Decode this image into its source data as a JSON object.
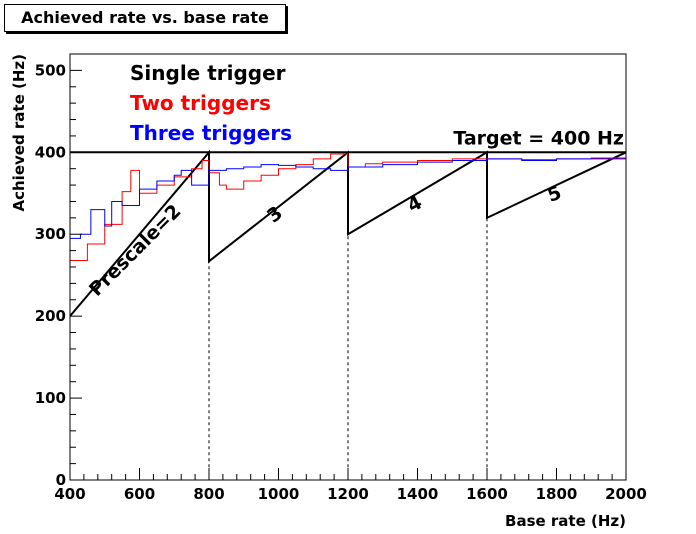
{
  "title": "Achieved rate vs. base rate",
  "chart_data": {
    "type": "line",
    "xlabel": "Base rate (Hz)",
    "ylabel": "Achieved rate (Hz)",
    "xlim": [
      400,
      2000
    ],
    "ylim": [
      0,
      520
    ],
    "xticks": [
      "400",
      "600",
      "800",
      "1000",
      "1200",
      "1400",
      "1600",
      "1800",
      "2000"
    ],
    "yticks": [
      "0",
      "100",
      "200",
      "300",
      "400",
      "500"
    ],
    "target": {
      "value": 400,
      "label": "Target = 400 Hz"
    },
    "legend": [
      "Single trigger",
      "Two triggers",
      "Three triggers"
    ],
    "series": [
      {
        "name": "Single trigger",
        "color": "#000000",
        "x": [
          400,
          800,
          800,
          1200,
          1200,
          1600,
          1600,
          2000
        ],
        "y": [
          200,
          400,
          267,
          400,
          300,
          400,
          320,
          400
        ]
      },
      {
        "name": "Two triggers",
        "color": "#ff0000",
        "x": [
          400,
          450,
          500,
          550,
          575,
          600,
          650,
          700,
          750,
          780,
          800,
          830,
          850,
          900,
          950,
          1000,
          1050,
          1100,
          1150,
          1200,
          1250,
          1300,
          1400,
          1500,
          1600,
          1700,
          1800,
          1900,
          2000
        ],
        "y": [
          268,
          288,
          312,
          352,
          378,
          350,
          360,
          370,
          380,
          390,
          375,
          360,
          355,
          365,
          372,
          380,
          385,
          392,
          398,
          382,
          386,
          388,
          390,
          392,
          392,
          391,
          392,
          393,
          391
        ]
      },
      {
        "name": "Three triggers",
        "color": "#0000ff",
        "x": [
          400,
          430,
          460,
          500,
          520,
          550,
          600,
          650,
          700,
          720,
          750,
          800,
          850,
          900,
          950,
          1000,
          1050,
          1100,
          1150,
          1200,
          1300,
          1400,
          1500,
          1600,
          1700,
          1800,
          1900,
          2000
        ],
        "y": [
          295,
          300,
          330,
          310,
          340,
          335,
          355,
          365,
          372,
          378,
          360,
          378,
          380,
          382,
          385,
          384,
          382,
          380,
          378,
          382,
          385,
          388,
          390,
          392,
          390,
          392,
          392,
          392
        ]
      }
    ],
    "prescale_labels": [
      "Prescale=2",
      "3",
      "4",
      "5"
    ],
    "prescale_boundaries": [
      800,
      1200,
      1600
    ]
  }
}
